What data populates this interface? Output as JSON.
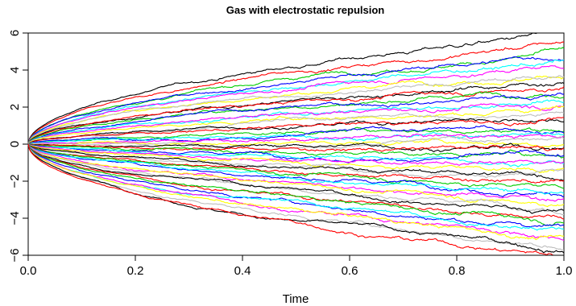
{
  "chart_data": {
    "type": "line",
    "title": "Gas with electrostatic repulsion",
    "xlabel": "Time",
    "ylabel": "",
    "xlim": [
      0,
      1
    ],
    "ylim": [
      -6,
      6
    ],
    "x_ticks": [
      0.0,
      0.2,
      0.4,
      0.6,
      0.8,
      1.0
    ],
    "x_tick_labels": [
      "0.0",
      "0.2",
      "0.4",
      "0.6",
      "0.8",
      "1.0"
    ],
    "y_ticks": [
      -6,
      -4,
      -2,
      0,
      2,
      4,
      6
    ],
    "y_tick_labels": [
      "−6",
      "−4",
      "−2",
      "0",
      "2",
      "4",
      "6"
    ],
    "grid": false,
    "legend": "none",
    "palette": [
      "#000000",
      "#ff0000",
      "#00cd00",
      "#0000ff",
      "#00ffff",
      "#ff00ff",
      "#ffff00",
      "#bebebe"
    ],
    "series_count": 50,
    "series_endpoints": [
      6.0,
      5.5,
      5.1,
      4.8,
      4.5,
      4.3,
      4.0,
      3.7,
      3.4,
      3.2,
      3.0,
      2.7,
      2.4,
      2.2,
      2.0,
      1.7,
      1.5,
      1.3,
      1.0,
      0.8,
      0.6,
      0.4,
      0.2,
      0.1,
      -0.1,
      -0.3,
      -0.5,
      -0.7,
      -0.9,
      -1.1,
      -1.3,
      -1.5,
      -1.7,
      -2.0,
      -2.2,
      -2.4,
      -2.6,
      -2.9,
      -3.1,
      -3.3,
      -3.6,
      -3.9,
      -4.1,
      -4.4,
      -4.6,
      -4.9,
      -5.1,
      -5.4,
      -5.7,
      -6.0
    ]
  }
}
